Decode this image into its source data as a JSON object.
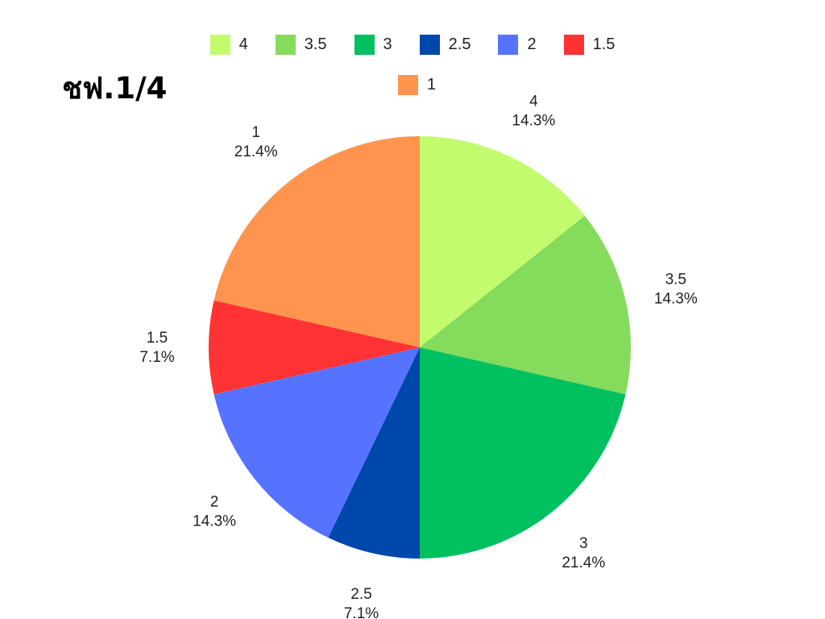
{
  "chart_data": {
    "type": "pie",
    "title": "ชฟ.1/4",
    "legend_position": "top",
    "start_angle": "12 o'clock, clockwise",
    "slices": [
      {
        "label": "4",
        "value": 2,
        "percent": "14.3%",
        "color": "#c3fb6f"
      },
      {
        "label": "3.5",
        "value": 2,
        "percent": "14.3%",
        "color": "#84db5c"
      },
      {
        "label": "3",
        "value": 3,
        "percent": "21.4%",
        "color": "#00c060"
      },
      {
        "label": "2.5",
        "value": 1,
        "percent": "7.1%",
        "color": "#0047ab"
      },
      {
        "label": "2",
        "value": 2,
        "percent": "14.3%",
        "color": "#5573ff"
      },
      {
        "label": "1.5",
        "value": 1,
        "percent": "7.1%",
        "color": "#ff3333"
      },
      {
        "label": "1",
        "value": 3,
        "percent": "21.4%",
        "color": "#ff944f"
      }
    ]
  }
}
